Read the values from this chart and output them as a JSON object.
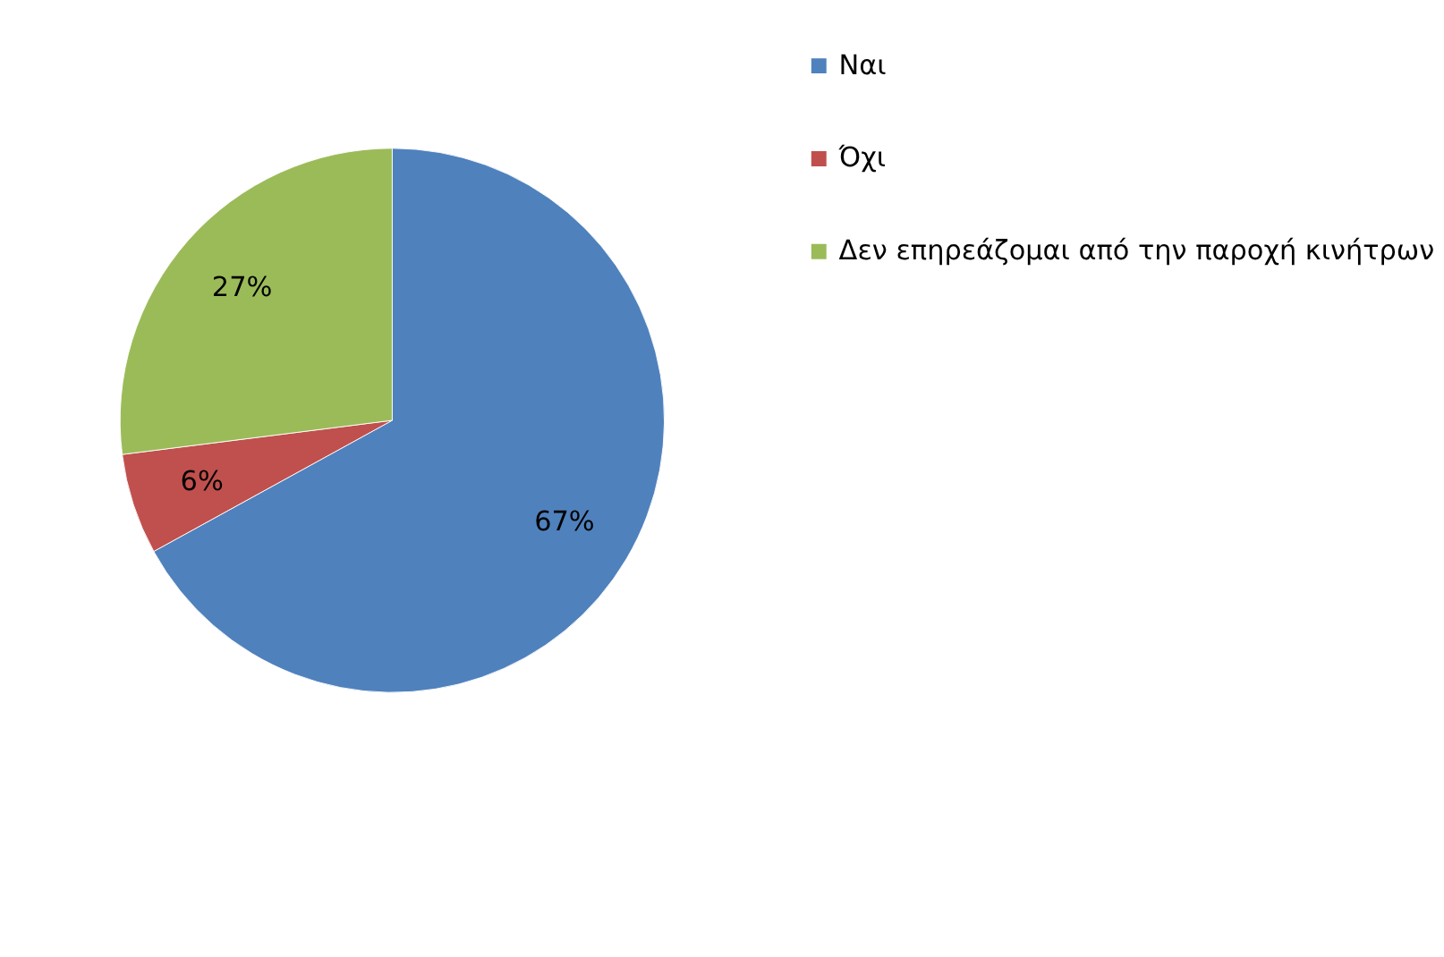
{
  "chart_data": {
    "type": "pie",
    "categories": [
      "Ναι",
      "Όχι",
      "Δεν επηρεάζομαι από την παροχή κινήτρων"
    ],
    "values": [
      67,
      6,
      27
    ],
    "colors": [
      "#4f81bd",
      "#c0504d",
      "#9bbb59"
    ],
    "value_labels": [
      "67%",
      "6%",
      "27%"
    ],
    "legend": "right"
  }
}
